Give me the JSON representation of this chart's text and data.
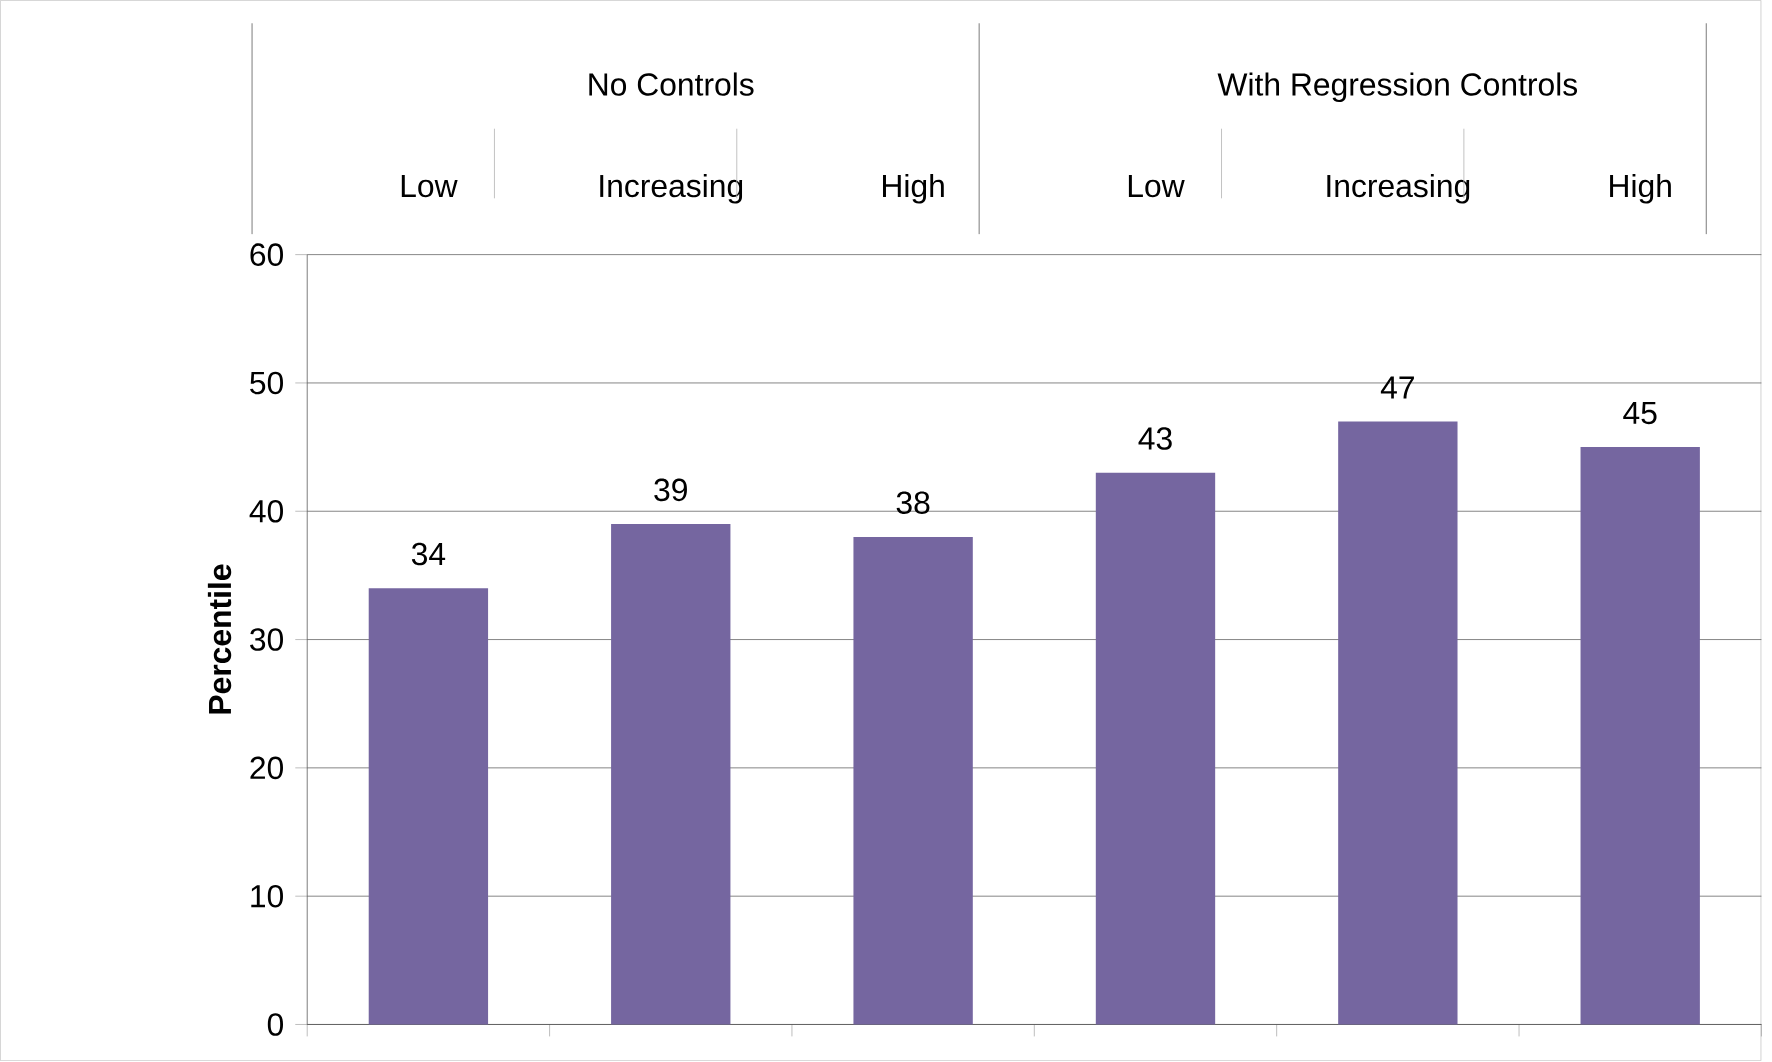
{
  "chart_data": {
    "type": "bar",
    "ylabel": "Percentile",
    "categories": [
      "Low",
      "Increasing",
      "High",
      "Low",
      "Increasing",
      "High"
    ],
    "values": [
      34,
      39,
      38,
      43,
      47,
      45
    ],
    "color": "#7566a0",
    "ylim": [
      0,
      60
    ],
    "yticks": [
      0,
      10,
      20,
      30,
      40,
      50,
      60
    ],
    "grid": "y",
    "data_labels": true,
    "annotations": [
      "No Controls",
      "With Regression Controls"
    ]
  }
}
